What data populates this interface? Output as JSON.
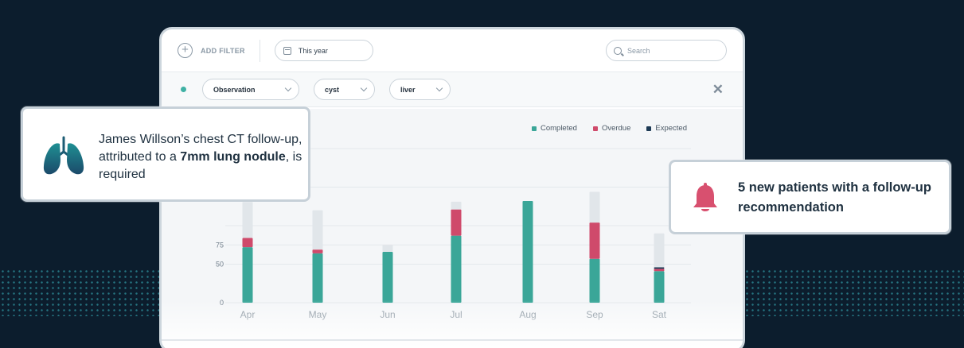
{
  "toolbar": {
    "add_filter_label": "ADD FILTER",
    "date_label": "This year",
    "search_placeholder": "Search"
  },
  "filters": {
    "chips": [
      "Observation",
      "cyst",
      "liver"
    ]
  },
  "legend": [
    {
      "label": "Completed",
      "color": "#3aa698"
    },
    {
      "label": "Overdue",
      "color": "#cf4a6b"
    },
    {
      "label": "Expected",
      "color": "#1d3a55"
    }
  ],
  "notification_left": {
    "text_before": "James Willson’s chest CT follow-up, attributed to a ",
    "text_bold": "7mm lung nodule",
    "text_after": ", is required"
  },
  "notification_right": {
    "text": "5 new patients with a follow-up recommendation"
  },
  "chart_data": {
    "type": "bar",
    "categories": [
      "Apr",
      "May",
      "Jun",
      "Jul",
      "Aug",
      "Sep",
      "Sat"
    ],
    "y_ticks": [
      0,
      50,
      75
    ],
    "series": [
      {
        "name": "Completed",
        "values": [
          72,
          64,
          66,
          87,
          132,
          57,
          41
        ]
      },
      {
        "name": "Overdue",
        "values": [
          12,
          5,
          0,
          34,
          0,
          47,
          3
        ]
      },
      {
        "name": "Expected",
        "values": [
          0,
          0,
          0,
          0,
          0,
          0,
          2
        ]
      },
      {
        "values": [
          47,
          51,
          9,
          10,
          0,
          40,
          44
        ]
      }
    ],
    "ylim": [
      0,
      200
    ],
    "colors": [
      "#3aa698",
      "#cf4a6b",
      "#1d3a55",
      "#e1e6ea"
    ]
  }
}
